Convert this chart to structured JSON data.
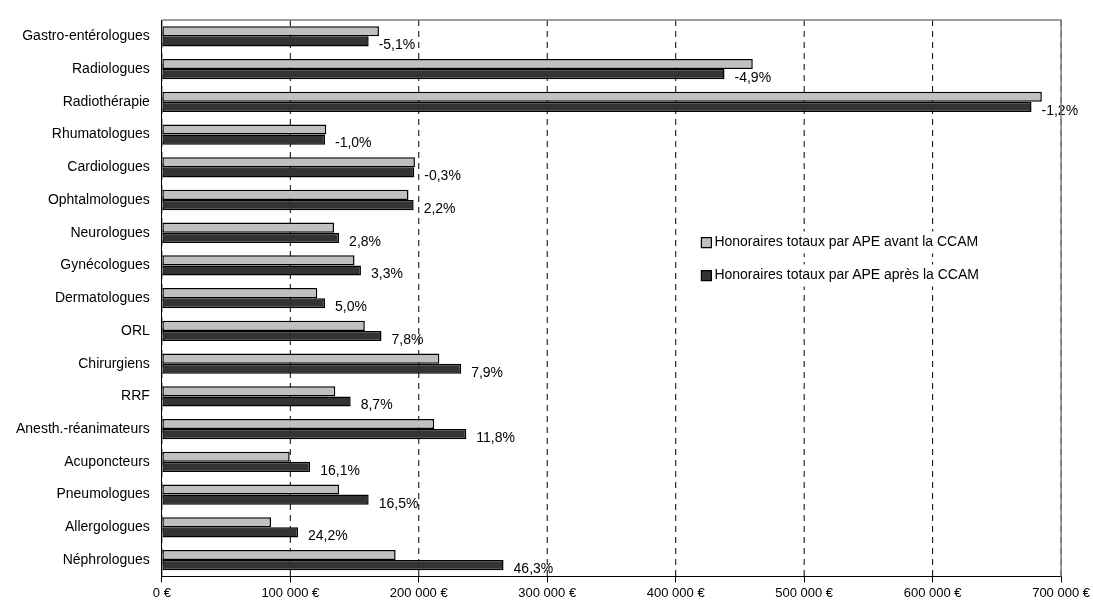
{
  "chart_data": {
    "type": "bar",
    "orientation": "horizontal",
    "categories": [
      "Gastro-entérologues",
      "Radiologues",
      "Radiothérapie",
      "Rhumatologues",
      "Cardiologues",
      "Ophtalmologues",
      "Neurologues",
      "Gynécologues",
      "Dermatologues",
      "ORL",
      "Chirurgiens",
      "RRF",
      "Anesth.-réanimateurs",
      "Acuponcteurs",
      "Pneumologues",
      "Allergologues",
      "Néphrologues"
    ],
    "series": [
      {
        "name": "Honoraires totaux par APE avant la CCAM",
        "color": "#c0c0c0",
        "values": [
          169000,
          460000,
          685000,
          128000,
          197000,
          192000,
          134000,
          150000,
          121000,
          158000,
          216000,
          135000,
          212000,
          99500,
          138000,
          85000,
          182000
        ]
      },
      {
        "name": "Honoraires totaux par APE après la CCAM",
        "color": "#333333",
        "values": [
          161000,
          438000,
          677000,
          127000,
          196500,
          196000,
          138000,
          155000,
          127000,
          171000,
          233000,
          147000,
          237000,
          115500,
          161000,
          106000,
          266000
        ]
      }
    ],
    "xlim": [
      0,
      700000
    ],
    "xticks": [
      {
        "value": 0,
        "label": "0 €"
      },
      {
        "value": 100000,
        "label": "100 000 €"
      },
      {
        "value": 200000,
        "label": "200 000 €"
      },
      {
        "value": 300000,
        "label": "300 000 €"
      },
      {
        "value": 400000,
        "label": "400 000 €"
      },
      {
        "value": 500000,
        "label": "500 000 €"
      },
      {
        "value": 600000,
        "label": "600 000 €"
      },
      {
        "value": 700000,
        "label": "700 000 €"
      }
    ],
    "grid": "x",
    "legend": "right",
    "annotations": [
      {
        "text": "-5,1%",
        "x": 161000,
        "y": "Gastro-entérologues"
      },
      {
        "text": "-4,9%",
        "x": 438000,
        "y": "Radiologues"
      },
      {
        "text": "-1,2%",
        "x": 677000,
        "y": "Radiothérapie"
      },
      {
        "text": "-1,0%",
        "x": 127000,
        "y": "Rhumatologues"
      },
      {
        "text": "-0,3%",
        "x": 196500,
        "y": "Cardiologues"
      },
      {
        "text": "2,2%",
        "x": 196000,
        "y": "Ophtalmologues"
      },
      {
        "text": "2,8%",
        "x": 138000,
        "y": "Neurologues"
      },
      {
        "text": "3,3%",
        "x": 155000,
        "y": "Gynécologues"
      },
      {
        "text": "5,0%",
        "x": 127000,
        "y": "Dermatologues"
      },
      {
        "text": "7,8%",
        "x": 171000,
        "y": "ORL"
      },
      {
        "text": "7,9%",
        "x": 233000,
        "y": "Chirurgiens"
      },
      {
        "text": "8,7%",
        "x": 147000,
        "y": "RRF"
      },
      {
        "text": "11,8%",
        "x": 237000,
        "y": "Anesth.-réanimateurs"
      },
      {
        "text": "16,1%",
        "x": 115500,
        "y": "Acuponcteurs"
      },
      {
        "text": "16,5%",
        "x": 161000,
        "y": "Pneumologues"
      },
      {
        "text": "24,2%",
        "x": 106000,
        "y": "Allergologues"
      },
      {
        "text": "46,3%",
        "x": 266000,
        "y": "Néphrologues"
      }
    ]
  }
}
